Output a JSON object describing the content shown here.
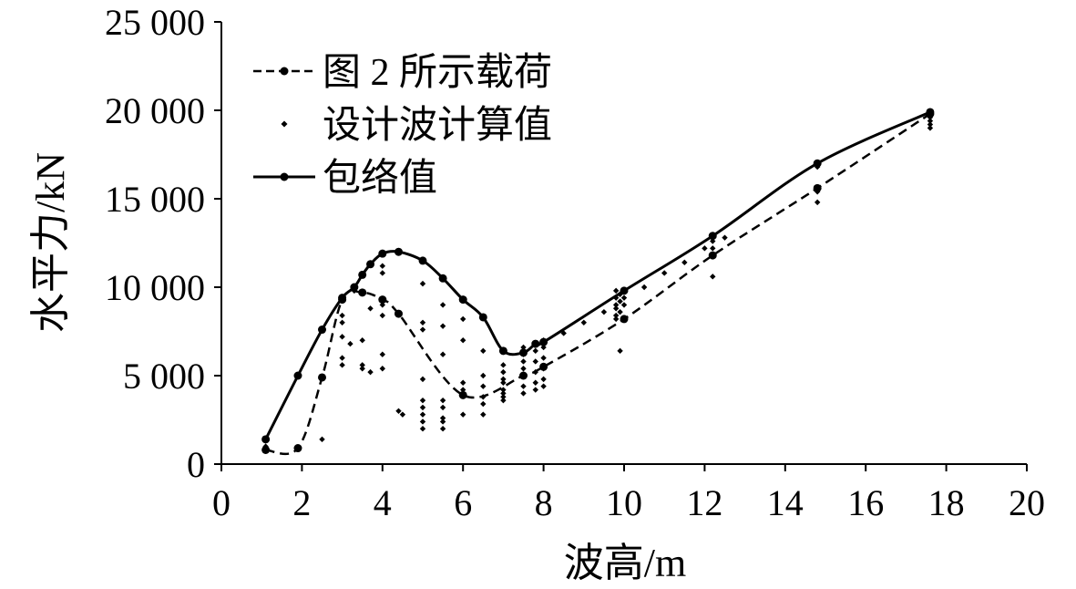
{
  "chart_data": {
    "type": "line",
    "xlabel": "波高/m",
    "ylabel": "水平力/kN",
    "xlim": [
      0,
      20
    ],
    "ylim": [
      0,
      25000
    ],
    "xticks": [
      "0",
      "2",
      "4",
      "6",
      "8",
      "10",
      "12",
      "14",
      "16",
      "18",
      "20"
    ],
    "yticks": [
      "0",
      "5 000",
      "10 000",
      "15 000",
      "20 000",
      "25 000"
    ],
    "grid": false,
    "legend_position": "top-left",
    "series": [
      {
        "name": "图 2 所示载荷",
        "style": "dashed-with-markers",
        "x": [
          1.1,
          1.9,
          2.5,
          3.0,
          3.5,
          4.0,
          4.4,
          6.0,
          7.5,
          8.0,
          10.0,
          12.2,
          14.8,
          17.6
        ],
        "y": [
          800,
          900,
          4900,
          9300,
          9700,
          9300,
          8500,
          3900,
          5000,
          5500,
          8200,
          11800,
          15600,
          19800
        ]
      },
      {
        "name": "设计波计算值",
        "style": "scatter",
        "x": [
          1.1,
          1.1,
          2.5,
          3.0,
          3.0,
          3.0,
          3.0,
          3.0,
          3.2,
          3.3,
          3.5,
          3.5,
          3.5,
          3.7,
          3.7,
          4.0,
          4.0,
          4.0,
          4.0,
          4.0,
          4.0,
          4.4,
          4.5,
          5.0,
          5.0,
          5.0,
          5.0,
          5.0,
          5.0,
          5.0,
          5.0,
          5.0,
          5.5,
          5.5,
          5.5,
          5.5,
          5.5,
          5.5,
          5.5,
          5.5,
          6.0,
          6.0,
          6.0,
          6.0,
          6.0,
          6.5,
          6.5,
          6.5,
          6.5,
          6.5,
          6.5,
          7.0,
          7.0,
          7.0,
          7.0,
          7.0,
          7.0,
          7.0,
          7.0,
          7.5,
          7.5,
          7.5,
          7.5,
          7.5,
          7.5,
          7.5,
          7.8,
          7.8,
          7.8,
          7.8,
          7.8,
          7.8,
          8.0,
          8.0,
          8.0,
          8.0,
          8.0,
          8.0,
          8.5,
          9.0,
          9.5,
          9.8,
          9.8,
          9.8,
          9.8,
          9.8,
          9.8,
          9.9,
          9.9,
          9.9,
          9.9,
          10.0,
          10.0,
          10.0,
          10.5,
          11.0,
          11.5,
          12.0,
          12.2,
          12.2,
          12.2,
          12.2,
          12.2,
          12.5,
          14.8,
          14.8,
          14.8,
          14.8,
          17.6,
          17.6,
          17.6,
          17.6,
          17.6
        ],
        "y": [
          1400,
          1000,
          1400,
          8400,
          8000,
          7200,
          6000,
          5600,
          6800,
          9800,
          7000,
          5600,
          5400,
          5200,
          8800,
          11200,
          10800,
          9000,
          8400,
          6200,
          5400,
          3000,
          2800,
          10200,
          8000,
          7600,
          4800,
          3600,
          3200,
          2800,
          2400,
          2000,
          9000,
          7800,
          6200,
          3600,
          3200,
          2600,
          2400,
          2000,
          8200,
          7000,
          4600,
          4200,
          2800,
          6400,
          5000,
          4400,
          3800,
          3400,
          2800,
          5600,
          5200,
          4800,
          4600,
          4200,
          4000,
          3800,
          3600,
          6600,
          6200,
          5800,
          5400,
          5000,
          4400,
          4000,
          6800,
          6400,
          5800,
          5200,
          4600,
          4200,
          7000,
          6600,
          6000,
          5400,
          4800,
          4400,
          7400,
          8000,
          8600,
          9800,
          9400,
          9000,
          8800,
          8400,
          8200,
          9600,
          9200,
          8600,
          6400,
          9800,
          9400,
          9000,
          10000,
          10800,
          11400,
          12200,
          12800,
          12600,
          12200,
          11800,
          10600,
          12800,
          17000,
          16800,
          15400,
          14800,
          19800,
          19600,
          19400,
          19200,
          19000
        ]
      },
      {
        "name": "包络值",
        "style": "solid-with-markers",
        "x": [
          1.1,
          1.9,
          2.5,
          3.0,
          3.3,
          3.5,
          3.7,
          4.0,
          4.4,
          5.0,
          5.5,
          6.0,
          6.5,
          7.0,
          7.5,
          7.8,
          8.0,
          10.0,
          12.2,
          14.8,
          17.6
        ],
        "y": [
          1400,
          5000,
          7600,
          9400,
          10000,
          10700,
          11300,
          11900,
          12000,
          11500,
          10500,
          9300,
          8300,
          6400,
          6300,
          6800,
          6900,
          9800,
          12900,
          17000,
          19900
        ]
      }
    ]
  }
}
